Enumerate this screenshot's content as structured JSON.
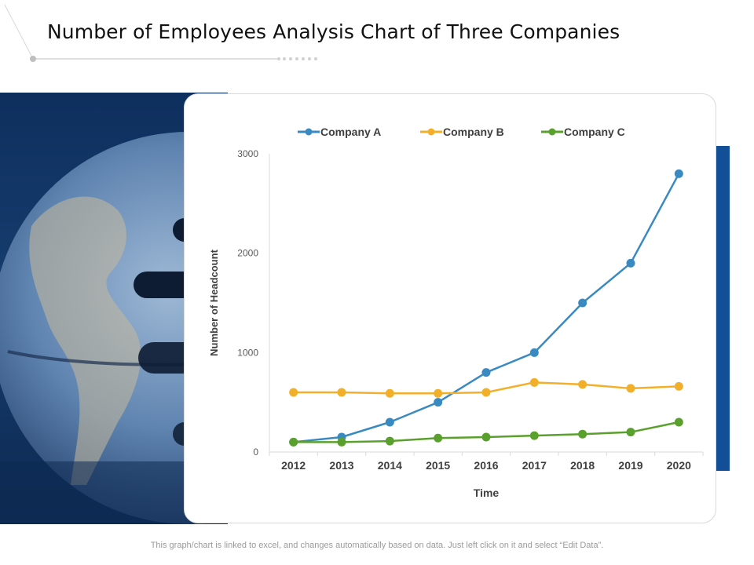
{
  "header": {
    "title": "Number of Employees Analysis Chart of Three Companies"
  },
  "footer": {
    "note": "This graph/chart is linked to excel, and changes automatically based on data. Just left click on it and select “Edit Data”."
  },
  "colors": {
    "accent_bar": "#124f96",
    "company_a": "#3a8ac2",
    "company_b": "#f2b02a",
    "company_c": "#5aa02c"
  },
  "images": {
    "left_panel": "globe-photo"
  },
  "chart_data": {
    "type": "line",
    "x": [
      "2012",
      "2013",
      "2014",
      "2015",
      "2016",
      "2017",
      "2018",
      "2019",
      "2020"
    ],
    "series": [
      {
        "name": "Company A",
        "color": "#3a8ac2",
        "values": [
          100,
          150,
          300,
          500,
          800,
          1000,
          1500,
          1900,
          2800
        ]
      },
      {
        "name": "Company B",
        "color": "#f2b02a",
        "values": [
          600,
          600,
          590,
          590,
          600,
          700,
          680,
          640,
          660
        ]
      },
      {
        "name": "Company C",
        "color": "#5aa02c",
        "values": [
          100,
          100,
          110,
          140,
          150,
          165,
          180,
          200,
          300
        ]
      }
    ],
    "xlabel": "Time",
    "ylabel": "Number of Headcount",
    "ylim": [
      0,
      3000
    ],
    "yticks": [
      0,
      1000,
      2000,
      3000
    ],
    "grid": false,
    "legend_position": "top"
  }
}
